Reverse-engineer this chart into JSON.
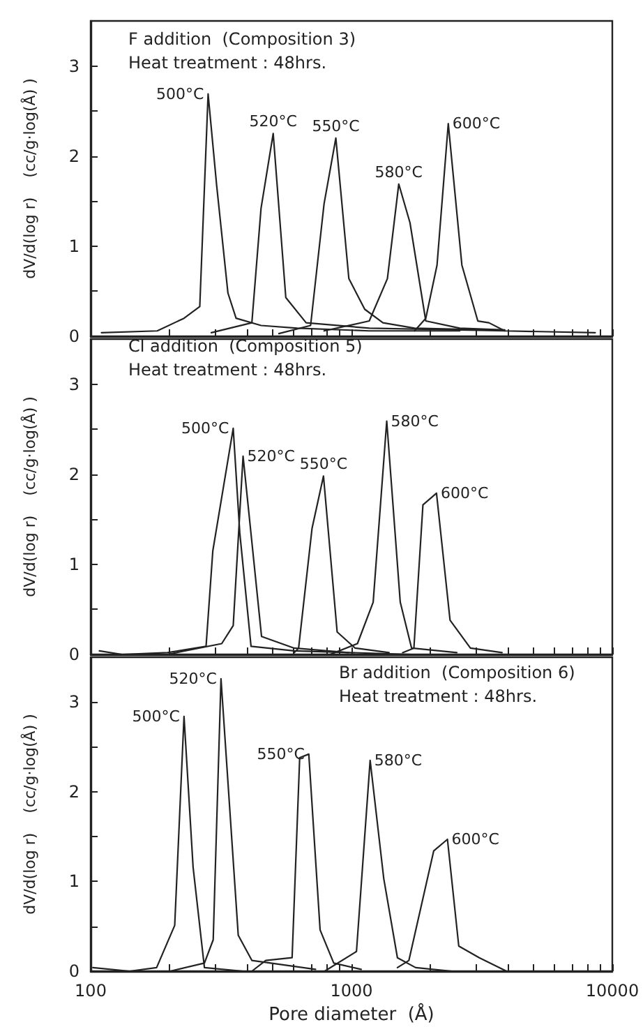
{
  "chart_data": [
    {
      "type": "line",
      "annotations": [
        "F addition  (Composition 3)",
        "Heat treatment : 48hrs."
      ],
      "ylabel": "dV/d(log r)    (cc/g·log(Å) )",
      "log": "x",
      "xlim": [
        100,
        10000
      ],
      "xticks": [
        100,
        {
          "value": 200,
          "label": null
        },
        {
          "value": 300,
          "label": null
        },
        {
          "value": 400,
          "label": null
        },
        {
          "value": 500,
          "label": null
        },
        {
          "value": 600,
          "label": null
        },
        {
          "value": 700,
          "label": null
        },
        {
          "value": 800,
          "label": null
        },
        {
          "value": 900,
          "label": null
        },
        1000,
        {
          "value": 2000,
          "label": null
        },
        {
          "value": 3000,
          "label": null
        },
        {
          "value": 4000,
          "label": null
        },
        {
          "value": 5000,
          "label": null
        },
        {
          "value": 6000,
          "label": null
        },
        {
          "value": 7000,
          "label": null
        },
        {
          "value": 8000,
          "label": null
        },
        {
          "value": 9000,
          "label": null
        },
        10000
      ],
      "ylim": [
        0,
        3.5
      ],
      "yticks": [
        0,
        {
          "value": 0.5,
          "label": null
        },
        1,
        {
          "value": 1.5,
          "label": null
        },
        2,
        {
          "value": 2.5,
          "label": null
        },
        3
      ],
      "tick_labels": "y",
      "marker": "none",
      "series": [
        {
          "name": "500°C",
          "color": "#222222",
          "x": [
            110,
            180,
            228,
            262,
            282,
            304,
            336,
            361,
            450,
            619,
            1170,
            2600
          ],
          "values": [
            0.04,
            0.06,
            0.2,
            0.33,
            2.69,
            1.68,
            0.48,
            0.2,
            0.12,
            0.09,
            0.06,
            0.06
          ]
        },
        {
          "name": "520°C",
          "color": "#222222",
          "x": [
            290,
            415,
            450,
            501,
            560,
            670,
            1170,
            3870
          ],
          "values": [
            0.04,
            0.15,
            1.42,
            2.25,
            0.43,
            0.15,
            0.09,
            0.06
          ]
        },
        {
          "name": "550°C",
          "color": "#222222",
          "x": [
            527,
            697,
            785,
            871,
            977,
            1124,
            1320,
            1745,
            3300
          ],
          "values": [
            0.03,
            0.12,
            1.47,
            2.2,
            0.64,
            0.3,
            0.15,
            0.09,
            0.07
          ]
        },
        {
          "name": "580°C",
          "color": "#222222",
          "x": [
            785,
            1170,
            1373,
            1518,
            1676,
            1927,
            2600,
            3870
          ],
          "values": [
            0.06,
            0.17,
            0.64,
            1.69,
            1.26,
            0.17,
            0.09,
            0.07
          ]
        },
        {
          "name": "600°C",
          "color": "#222222",
          "x": [
            1745,
            1927,
            2128,
            2350,
            2650,
            3050,
            3365,
            3870,
            8600
          ],
          "values": [
            0.06,
            0.2,
            0.79,
            2.36,
            0.79,
            0.17,
            0.15,
            0.06,
            0.04
          ]
        }
      ]
    },
    {
      "type": "line",
      "annotations": [
        "Cl addition  (Composition 5)",
        "Heat treatment : 48hrs."
      ],
      "ylabel": "dV/d(log r)    (cc/g·log(Å) )",
      "log": "x",
      "xlim": [
        100,
        10000
      ],
      "xticks": [
        100,
        {
          "value": 200,
          "label": null
        },
        {
          "value": 300,
          "label": null
        },
        {
          "value": 400,
          "label": null
        },
        {
          "value": 500,
          "label": null
        },
        {
          "value": 600,
          "label": null
        },
        {
          "value": 700,
          "label": null
        },
        {
          "value": 800,
          "label": null
        },
        {
          "value": 900,
          "label": null
        },
        1000,
        {
          "value": 2000,
          "label": null
        },
        {
          "value": 3000,
          "label": null
        },
        {
          "value": 4000,
          "label": null
        },
        {
          "value": 5000,
          "label": null
        },
        {
          "value": 6000,
          "label": null
        },
        {
          "value": 7000,
          "label": null
        },
        {
          "value": 8000,
          "label": null
        },
        {
          "value": 9000,
          "label": null
        },
        10000
      ],
      "ylim": [
        0,
        3.5
      ],
      "yticks": [
        0,
        {
          "value": 0.5,
          "label": null
        },
        1,
        {
          "value": 1.5,
          "label": null
        },
        2,
        {
          "value": 2.5,
          "label": null
        },
        3
      ],
      "tick_labels": "y",
      "marker": "none",
      "series": [
        {
          "name": "500°C",
          "color": "#222222",
          "x": [
            108,
            132,
            197,
            277,
            294,
            352,
            373,
            412,
            603,
            1700
          ],
          "values": [
            0.04,
            0,
            0.02,
            0.09,
            1.15,
            2.51,
            1.35,
            0.09,
            0.04,
            0
          ]
        },
        {
          "name": "520°C",
          "color": "#222222",
          "x": [
            197,
            318,
            352,
            384,
            452,
            603,
            973
          ],
          "values": [
            0,
            0.12,
            0.32,
            2.2,
            0.2,
            0.07,
            0.02
          ]
        },
        {
          "name": "550°C",
          "color": "#222222",
          "x": [
            603,
            627,
            706,
            781,
            881,
            1033,
            1393
          ],
          "values": [
            0.02,
            0.07,
            1.4,
            1.98,
            0.25,
            0.07,
            0.02
          ]
        },
        {
          "name": "580°C",
          "color": "#222222",
          "x": [
            828,
            1054,
            1211,
            1365,
            1538,
            1700,
            2534
          ],
          "values": [
            0,
            0.12,
            0.58,
            2.59,
            0.58,
            0.07,
            0.02
          ]
        },
        {
          "name": "600°C",
          "color": "#222222",
          "x": [
            1571,
            1735,
            1879,
            2118,
            2387,
            2857,
            3777
          ],
          "values": [
            0.02,
            0.07,
            1.66,
            1.79,
            0.38,
            0.07,
            0.02
          ]
        }
      ]
    },
    {
      "type": "line",
      "annotations": [
        "Br addition  (Composition 6)",
        "Heat treatment : 48hrs."
      ],
      "xlabel": "Pore diameter  (Å)",
      "ylabel": "dV/d(log r)    (cc/g·log(Å) )",
      "log": "x",
      "xlim": [
        100,
        10000
      ],
      "xticks": [
        100,
        {
          "value": 200,
          "label": null
        },
        {
          "value": 300,
          "label": null
        },
        {
          "value": 400,
          "label": null
        },
        {
          "value": 500,
          "label": null
        },
        {
          "value": 600,
          "label": null
        },
        {
          "value": 700,
          "label": null
        },
        {
          "value": 800,
          "label": null
        },
        {
          "value": 900,
          "label": null
        },
        1000,
        {
          "value": 2000,
          "label": null
        },
        {
          "value": 3000,
          "label": null
        },
        {
          "value": 4000,
          "label": null
        },
        {
          "value": 5000,
          "label": null
        },
        {
          "value": 6000,
          "label": null
        },
        {
          "value": 7000,
          "label": null
        },
        {
          "value": 8000,
          "label": null
        },
        {
          "value": 9000,
          "label": null
        },
        10000
      ],
      "ylim": [
        0,
        3.5
      ],
      "yticks": [
        0,
        {
          "value": 0.5,
          "label": null
        },
        1,
        {
          "value": 1.5,
          "label": null
        },
        2,
        {
          "value": 2.5,
          "label": null
        },
        3
      ],
      "marker": "none",
      "series": [
        {
          "name": "500°C",
          "color": "#222222",
          "x": [
            102,
            141,
            179,
            210,
            228,
            247,
            273,
            384,
            1089
          ],
          "values": [
            0.04,
            0,
            0.04,
            0.51,
            2.84,
            1.16,
            0.04,
            0,
            0
          ]
        },
        {
          "name": "520°C",
          "color": "#222222",
          "x": [
            202,
            273,
            295,
            316,
            368,
            415,
            728
          ],
          "values": [
            0,
            0.09,
            0.35,
            3.26,
            0.4,
            0.12,
            0.02
          ]
        },
        {
          "name": "550°C",
          "color": "#222222",
          "x": [
            415,
            469,
            592,
            633,
            686,
            758,
            855,
            1089
          ],
          "values": [
            0,
            0.12,
            0.15,
            2.38,
            2.42,
            0.46,
            0.09,
            0.02
          ]
        },
        {
          "name": "580°C",
          "color": "#222222",
          "x": [
            789,
            1045,
            1179,
            1330,
            1500,
            1762,
            2427
          ],
          "values": [
            0,
            0.22,
            2.35,
            1.03,
            0.15,
            0.04,
            0
          ]
        },
        {
          "name": "600°C",
          "color": "#222222",
          "x": [
            1500,
            1660,
            2066,
            2333,
            2578,
            3090,
            3930
          ],
          "values": [
            0.04,
            0.12,
            1.34,
            1.47,
            0.28,
            0.15,
            0
          ]
        }
      ]
    }
  ]
}
